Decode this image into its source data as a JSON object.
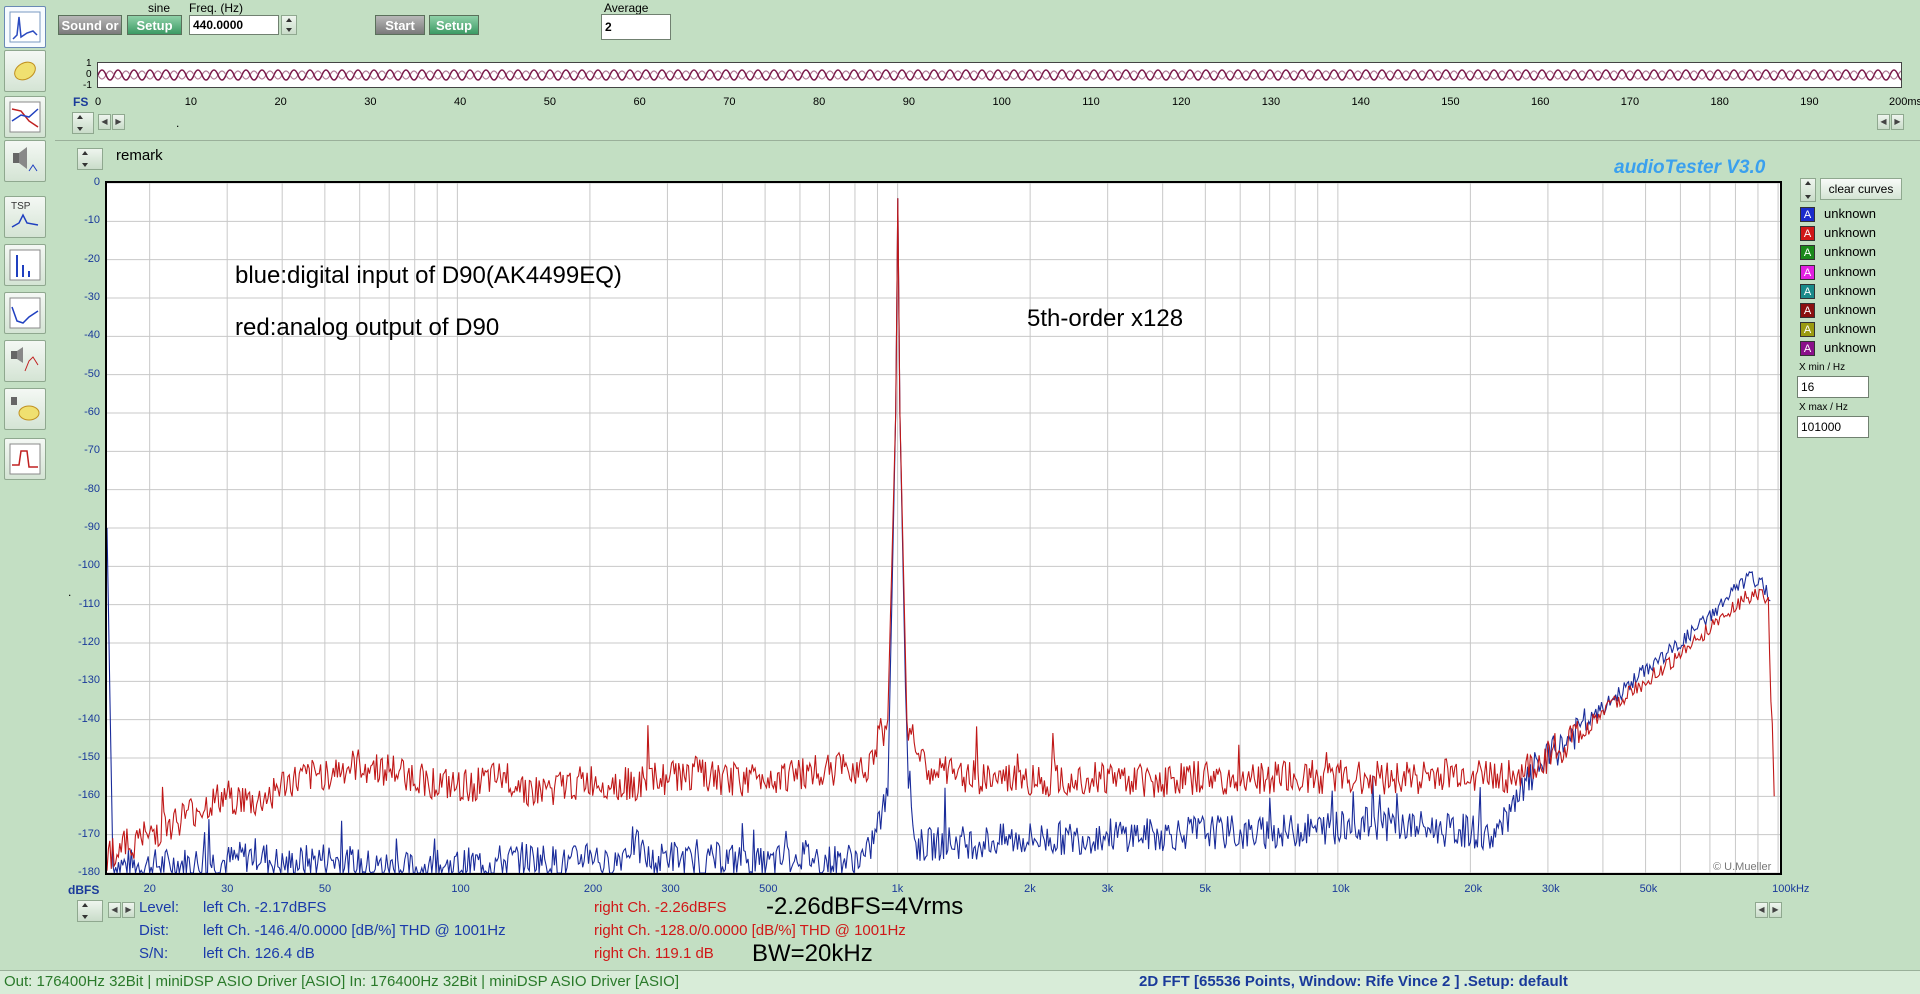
{
  "toolbar": {
    "sound_button": "Sound or",
    "signal_type": "sine",
    "setup_left": "Setup",
    "freq_label": "Freq. (Hz)",
    "freq_value": "440.0000",
    "start_button": "Start",
    "setup_right": "Setup",
    "average_label": "Average",
    "average_value": "2"
  },
  "oscilloscope": {
    "y_labels": [
      "1",
      "0",
      "-1"
    ],
    "x_ticks": [
      "0",
      "10",
      "20",
      "30",
      "40",
      "50",
      "60",
      "70",
      "80",
      "90",
      "100",
      "110",
      "120",
      "130",
      "140",
      "150",
      "160",
      "170",
      "180",
      "190",
      "200ms"
    ],
    "fs_label": "FS",
    "dot": "."
  },
  "panel": {
    "remark": "remark",
    "app_title": "audioTester  V3.0",
    "copyright": "© U.Mueller",
    "y_unit": "dBFS",
    "dot": "."
  },
  "annotations": {
    "line1": "blue:digital input of D90(AK4499EQ)",
    "line2": "red:analog output of D90",
    "line3": "5th-order x128"
  },
  "legend": {
    "clear_button": "clear curves",
    "items": [
      {
        "letter": "A",
        "label": "unknown",
        "color": "#1a2ccc"
      },
      {
        "letter": "A",
        "label": "unknown",
        "color": "#d01818"
      },
      {
        "letter": "A",
        "label": "unknown",
        "color": "#1a8a1a"
      },
      {
        "letter": "A",
        "label": "unknown",
        "color": "#e020e0"
      },
      {
        "letter": "A",
        "label": "unknown",
        "color": "#1a8a8a"
      },
      {
        "letter": "A",
        "label": "unknown",
        "color": "#8a1010"
      },
      {
        "letter": "A",
        "label": "unknown",
        "color": "#9a9a10"
      },
      {
        "letter": "A",
        "label": "unknown",
        "color": "#8a108a"
      }
    ],
    "xmin_label": "X min / Hz",
    "xmin_value": "16",
    "xmax_label": "X max / Hz",
    "xmax_value": "101000"
  },
  "readouts": {
    "level_label": "Level:",
    "dist_label": "Dist:",
    "sn_label": "S/N:",
    "level_left": "left Ch. -2.17dBFS",
    "dist_left": "left Ch. -146.4/0.0000 [dB/%] THD @ 1001Hz",
    "sn_left": "left Ch. 126.4 dB",
    "level_right": "right Ch. -2.26dBFS",
    "dist_right": "right Ch. -128.0/0.0000 [dB/%] THD @ 1001Hz",
    "sn_right": "right Ch. 119.1 dB",
    "big1": "-2.26dBFS=4Vrms",
    "big2": "BW=20kHz"
  },
  "status": {
    "left": "Out: 176400Hz 32Bit  | miniDSP ASIO Driver [ASIO]  In: 176400Hz 32Bit  | miniDSP ASIO Driver [ASIO]",
    "right": "2D FFT [65536 Points, Window: Rife Vince 2 ]  .Setup:  default"
  },
  "chart_data": {
    "type": "line",
    "xlabel": "",
    "ylabel": "dBFS",
    "xscale": "log",
    "xlim": [
      16,
      101000
    ],
    "ylim": [
      -180,
      0
    ],
    "y_ticks": [
      0,
      -10,
      -20,
      -30,
      -40,
      -50,
      -60,
      -70,
      -80,
      -90,
      -100,
      -110,
      -120,
      -130,
      -140,
      -150,
      -160,
      -170,
      -180
    ],
    "x_ticks": [
      {
        "v": 20,
        "t": "20"
      },
      {
        "v": 30,
        "t": "30"
      },
      {
        "v": 50,
        "t": "50"
      },
      {
        "v": 100,
        "t": "100"
      },
      {
        "v": 200,
        "t": "200"
      },
      {
        "v": 300,
        "t": "300"
      },
      {
        "v": 500,
        "t": "500"
      },
      {
        "v": 1000,
        "t": "1k"
      },
      {
        "v": 2000,
        "t": "2k"
      },
      {
        "v": 3000,
        "t": "3k"
      },
      {
        "v": 5000,
        "t": "5k"
      },
      {
        "v": 10000,
        "t": "10k"
      },
      {
        "v": 20000,
        "t": "20k"
      },
      {
        "v": 30000,
        "t": "30k"
      },
      {
        "v": 50000,
        "t": "50k"
      },
      {
        "v": 100000,
        "t": "100kHz"
      }
    ],
    "grid": true,
    "series": [
      {
        "color": "#1a2c9a",
        "points": [
          [
            16,
            -90
          ],
          [
            16.5,
            -178
          ],
          [
            20,
            -178
          ],
          [
            30,
            -177
          ],
          [
            35,
            -175
          ],
          [
            40,
            -178
          ],
          [
            50,
            -176
          ],
          [
            60,
            -178
          ],
          [
            80,
            -179
          ],
          [
            100,
            -178
          ],
          [
            150,
            -176
          ],
          [
            180,
            -178
          ],
          [
            200,
            -174
          ],
          [
            220,
            -179
          ],
          [
            250,
            -172
          ],
          [
            280,
            -178
          ],
          [
            300,
            -175
          ],
          [
            350,
            -178
          ],
          [
            400,
            -176
          ],
          [
            500,
            -178
          ],
          [
            600,
            -175
          ],
          [
            700,
            -177
          ],
          [
            850,
            -176
          ],
          [
            950,
            -160
          ],
          [
            990,
            -60
          ],
          [
            1001,
            -4
          ],
          [
            1012,
            -60
          ],
          [
            1050,
            -150
          ],
          [
            1100,
            -173
          ],
          [
            1300,
            -172
          ],
          [
            1500,
            -172
          ],
          [
            2000,
            -171
          ],
          [
            2500,
            -171
          ],
          [
            3000,
            -170
          ],
          [
            4000,
            -170
          ],
          [
            5000,
            -169
          ],
          [
            6000,
            -170
          ],
          [
            8000,
            -169
          ],
          [
            10000,
            -168
          ],
          [
            12000,
            -167
          ],
          [
            15000,
            -168
          ],
          [
            18000,
            -169
          ],
          [
            20000,
            -169
          ],
          [
            22000,
            -171
          ],
          [
            24000,
            -167
          ],
          [
            26000,
            -160
          ],
          [
            28000,
            -153
          ],
          [
            30000,
            -150
          ],
          [
            35000,
            -143
          ],
          [
            40000,
            -137
          ],
          [
            50000,
            -127
          ],
          [
            60000,
            -120
          ],
          [
            70000,
            -113
          ],
          [
            80000,
            -106
          ],
          [
            86000,
            -103
          ],
          [
            90000,
            -104
          ],
          [
            94000,
            -106
          ],
          [
            96000,
            -109
          ]
        ]
      },
      {
        "color": "#c01818",
        "points": [
          [
            16,
            -175
          ],
          [
            20,
            -170
          ],
          [
            25,
            -164
          ],
          [
            30,
            -160
          ],
          [
            35,
            -162
          ],
          [
            40,
            -157
          ],
          [
            50,
            -154
          ],
          [
            60,
            -152
          ],
          [
            70,
            -153
          ],
          [
            80,
            -155
          ],
          [
            100,
            -158
          ],
          [
            130,
            -155
          ],
          [
            150,
            -159
          ],
          [
            200,
            -156
          ],
          [
            250,
            -157
          ],
          [
            300,
            -155
          ],
          [
            350,
            -154
          ],
          [
            400,
            -156
          ],
          [
            500,
            -155
          ],
          [
            600,
            -154
          ],
          [
            700,
            -153
          ],
          [
            850,
            -152
          ],
          [
            950,
            -140
          ],
          [
            990,
            -60
          ],
          [
            1001,
            -4
          ],
          [
            1012,
            -60
          ],
          [
            1050,
            -140
          ],
          [
            1150,
            -153
          ],
          [
            1500,
            -155
          ],
          [
            2000,
            -156
          ],
          [
            2500,
            -155
          ],
          [
            3000,
            -155
          ],
          [
            4000,
            -156
          ],
          [
            5000,
            -155
          ],
          [
            6000,
            -156
          ],
          [
            8000,
            -155
          ],
          [
            10000,
            -155
          ],
          [
            15000,
            -155
          ],
          [
            20000,
            -154
          ],
          [
            25000,
            -155
          ],
          [
            28000,
            -152
          ],
          [
            30000,
            -150
          ],
          [
            35000,
            -144
          ],
          [
            40000,
            -138
          ],
          [
            50000,
            -130
          ],
          [
            60000,
            -123
          ],
          [
            70000,
            -116
          ],
          [
            80000,
            -110
          ],
          [
            88000,
            -107
          ],
          [
            92000,
            -107
          ],
          [
            95000,
            -110
          ],
          [
            97000,
            -145
          ],
          [
            98000,
            -160
          ]
        ]
      }
    ]
  }
}
